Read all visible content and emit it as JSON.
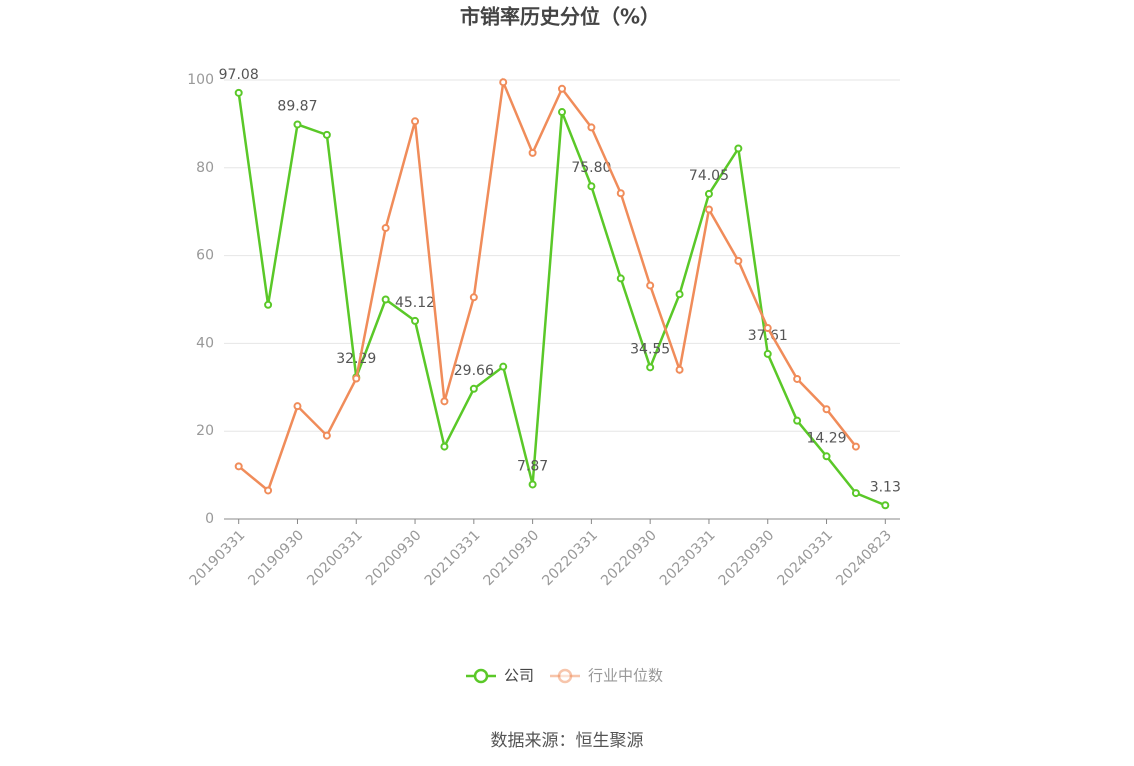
{
  "chart_data": {
    "type": "line",
    "title": "市销率历史分位（%）",
    "categories": [
      "20190331",
      null,
      "20190930",
      null,
      "20200331",
      null,
      "20200930",
      null,
      "20210331",
      null,
      "20210930",
      null,
      "20220331",
      null,
      "20220930",
      null,
      "20230331",
      null,
      "20230930",
      null,
      "20240331",
      null,
      "20240823"
    ],
    "series": [
      {
        "name": "公司",
        "color": "#5ac828",
        "values": [
          97.08,
          48.8,
          89.87,
          87.5,
          32.29,
          50,
          45.12,
          16.5,
          29.66,
          34.7,
          7.87,
          92.7,
          75.8,
          54.8,
          34.55,
          51.2,
          74.05,
          84.4,
          37.61,
          22.4,
          14.29,
          5.9,
          3.13
        ],
        "value_labels": [
          "97.08",
          null,
          "89.87",
          null,
          "32.29",
          null,
          "45.12",
          null,
          "29.66",
          null,
          "7.87",
          null,
          "75.80",
          null,
          "34.55",
          null,
          "74.05",
          null,
          "37.61",
          null,
          "14.29",
          null,
          "3.13"
        ]
      },
      {
        "name": "行业中位数",
        "color": "#f08c5a",
        "values": [
          12,
          6.5,
          25.7,
          19,
          32,
          66.3,
          90.6,
          26.8,
          50.5,
          99.5,
          83.4,
          98,
          89.2,
          74.2,
          53.2,
          34,
          70.5,
          58.8,
          43.5,
          31.9,
          25,
          16.5,
          null
        ]
      }
    ],
    "ylim": [
      0,
      100
    ],
    "yticks": [
      0,
      20,
      40,
      60,
      80,
      100
    ],
    "grid": true,
    "legend": "bottom",
    "source": "数据来源：恒生聚源"
  }
}
